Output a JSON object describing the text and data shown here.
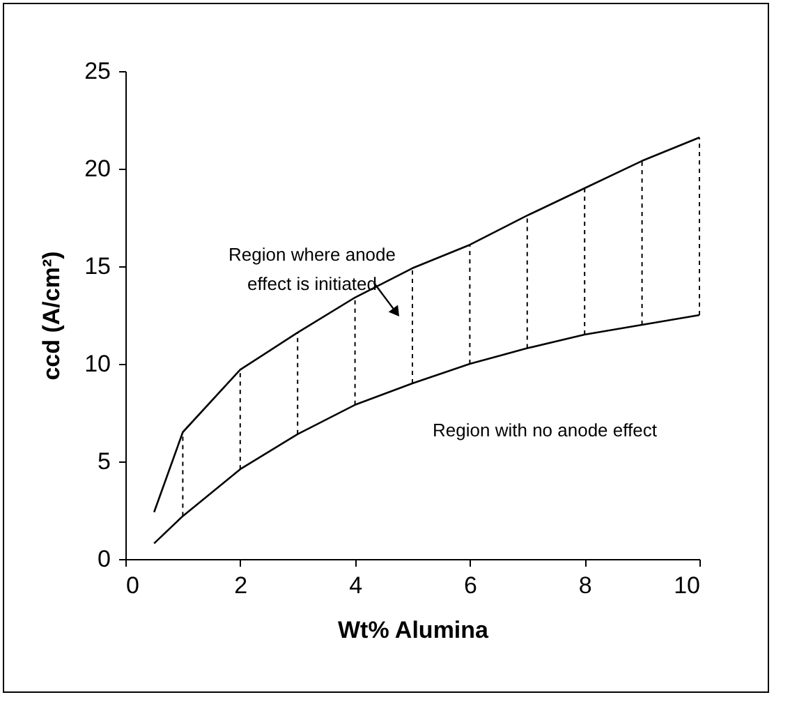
{
  "chart_data": {
    "type": "line",
    "xlabel": "Wt% Alumina",
    "ylabel": "ccd (A/cm²)",
    "xlim": [
      0,
      10
    ],
    "xticks": [
      0,
      2,
      4,
      6,
      8,
      10
    ],
    "ylim": [
      0,
      25
    ],
    "yticks": [
      0,
      5,
      10,
      15,
      20,
      25
    ],
    "grid": false,
    "legend": false,
    "series": [
      {
        "color": "#000000",
        "x": [
          0.5,
          1,
          2,
          3,
          4,
          5,
          6,
          7,
          8,
          9,
          10
        ],
        "values": [
          2.4,
          6.5,
          9.7,
          11.6,
          13.4,
          14.9,
          16.1,
          17.6,
          19.0,
          20.4,
          21.6
        ]
      },
      {
        "color": "#000000",
        "x": [
          0.5,
          1,
          2,
          3,
          4,
          5,
          6,
          7,
          8,
          9,
          10
        ],
        "values": [
          0.8,
          2.2,
          4.6,
          6.4,
          7.9,
          9.0,
          10.0,
          10.8,
          11.5,
          12.0,
          12.5
        ],
        "errors": [
          null,
          [
            2.2,
            6.5
          ],
          [
            4.6,
            9.7
          ],
          [
            6.4,
            11.6
          ],
          [
            7.9,
            13.4
          ],
          [
            9.0,
            14.9
          ],
          [
            10.0,
            16.1
          ],
          [
            10.8,
            17.6
          ],
          [
            11.5,
            19.0
          ],
          [
            12.0,
            20.4
          ],
          [
            12.5,
            21.6
          ]
        ]
      }
    ],
    "annotations": [
      {
        "text": "Region where anode effect is initiated",
        "x": 4.7,
        "y": 12.7
      },
      "Region with no anode effect"
    ]
  }
}
